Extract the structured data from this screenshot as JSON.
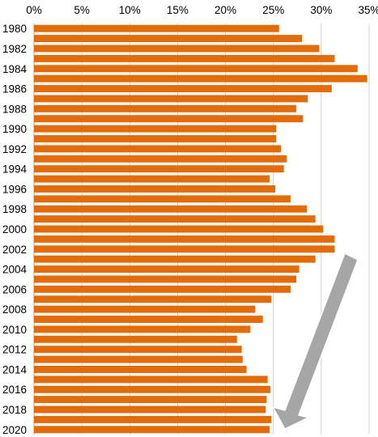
{
  "chart_data": {
    "type": "bar",
    "orientation": "horizontal",
    "title": "",
    "xlabel": "",
    "ylabel": "",
    "categories": [
      "1980",
      "1981",
      "1982",
      "1983",
      "1984",
      "1985",
      "1986",
      "1987",
      "1988",
      "1989",
      "1990",
      "1991",
      "1992",
      "1993",
      "1994",
      "1995",
      "1996",
      "1997",
      "1998",
      "1999",
      "2000",
      "2001",
      "2002",
      "2003",
      "2004",
      "2005",
      "2006",
      "2007",
      "2008",
      "2009",
      "2010",
      "2011",
      "2012",
      "2013",
      "2014",
      "2015",
      "2016",
      "2017",
      "2018",
      "2019",
      "2020"
    ],
    "category_labels_shown": [
      "1980",
      "",
      "1982",
      "",
      "1984",
      "",
      "1986",
      "",
      "1988",
      "",
      "1990",
      "",
      "1992",
      "",
      "1994",
      "",
      "1996",
      "",
      "1998",
      "",
      "2000",
      "",
      "2002",
      "",
      "2004",
      "",
      "2006",
      "",
      "2008",
      "",
      "2010",
      "",
      "2012",
      "",
      "2014",
      "",
      "2016",
      "",
      "2018",
      "",
      "2020"
    ],
    "values": [
      25.6,
      28.0,
      29.8,
      31.4,
      33.8,
      34.8,
      31.1,
      28.6,
      27.4,
      28.1,
      25.3,
      25.3,
      25.8,
      26.4,
      26.1,
      24.6,
      25.2,
      26.8,
      28.5,
      29.4,
      30.2,
      31.4,
      31.4,
      29.4,
      27.7,
      27.4,
      26.8,
      24.8,
      23.1,
      23.9,
      22.6,
      21.2,
      21.7,
      21.8,
      22.2,
      24.4,
      24.7,
      24.3,
      24.2,
      24.8,
      24.6
    ],
    "xlim": [
      0,
      35
    ],
    "xticks": [
      0,
      5,
      10,
      15,
      20,
      25,
      30,
      35
    ],
    "xtick_labels": [
      "0%",
      "5%",
      "10%",
      "15%",
      "20%",
      "25%",
      "30%",
      "35%"
    ],
    "x_axis_position": "top",
    "grid": true,
    "legend": "none",
    "annotation": "downward-trend-arrow"
  },
  "colors": {
    "bar": "#E36C0A",
    "grid": "#d0d0d0",
    "axis": "#a6a6a6",
    "arrow_fill": "#A6A6A6",
    "arrow_stroke": "#ffffff"
  }
}
